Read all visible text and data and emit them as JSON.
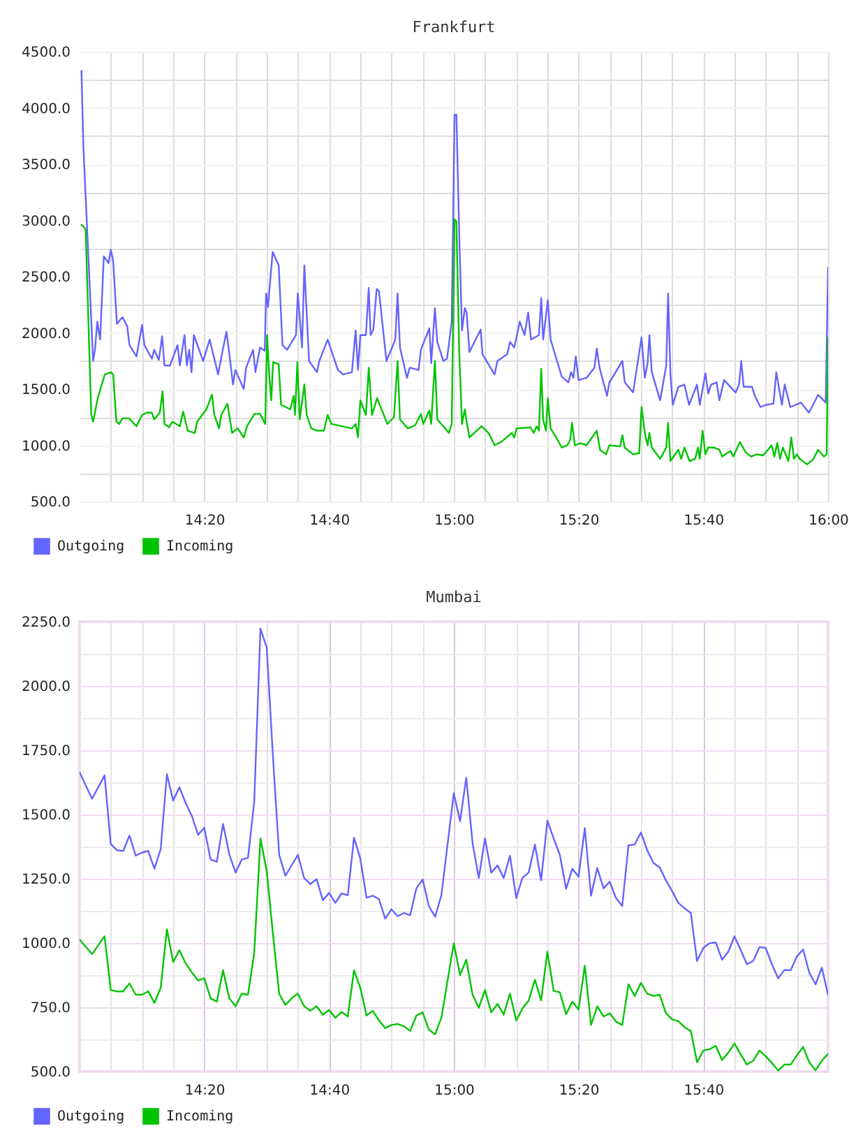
{
  "chart_data": [
    {
      "type": "line",
      "title": "Frankfurt",
      "xlim": [
        14,
        16
      ],
      "ylim": [
        500,
        4500
      ],
      "xticks": [
        {
          "value": 14.0833,
          "label": null
        },
        {
          "value": 14.1667,
          "label": null
        },
        {
          "value": 14.25,
          "label": null
        },
        {
          "value": 14.3333,
          "label": "14:20"
        },
        {
          "value": 14.4167,
          "label": null
        },
        {
          "value": 14.5,
          "label": null
        },
        {
          "value": 14.5833,
          "label": null
        },
        {
          "value": 14.6667,
          "label": "14:40"
        },
        {
          "value": 14.75,
          "label": null
        },
        {
          "value": 14.8333,
          "label": null
        },
        {
          "value": 14.9167,
          "label": null
        },
        {
          "value": 15,
          "label": "15:00"
        },
        {
          "value": 15.0833,
          "label": null
        },
        {
          "value": 15.1667,
          "label": null
        },
        {
          "value": 15.25,
          "label": null
        },
        {
          "value": 15.3333,
          "label": "15:20"
        },
        {
          "value": 15.4167,
          "label": null
        },
        {
          "value": 15.5,
          "label": null
        },
        {
          "value": 15.5833,
          "label": null
        },
        {
          "value": 15.6667,
          "label": "15:40"
        },
        {
          "value": 15.75,
          "label": null
        },
        {
          "value": 15.8333,
          "label": null
        },
        {
          "value": 15.9167,
          "label": null
        },
        {
          "value": 16,
          "label": "16:00"
        }
      ],
      "yticks": [
        {
          "value": 500,
          "label": "500.0"
        },
        {
          "value": 750,
          "label": null
        },
        {
          "value": 1000,
          "label": "1000.0"
        },
        {
          "value": 1250,
          "label": null
        },
        {
          "value": 1500,
          "label": "1500.0"
        },
        {
          "value": 1750,
          "label": null
        },
        {
          "value": 2000,
          "label": "2000.0"
        },
        {
          "value": 2250,
          "label": null
        },
        {
          "value": 2500,
          "label": "2500.0"
        },
        {
          "value": 2750,
          "label": null
        },
        {
          "value": 3000,
          "label": "3000.0"
        },
        {
          "value": 3250,
          "label": null
        },
        {
          "value": 3500,
          "label": "3500.0"
        },
        {
          "value": 3750,
          "label": null
        },
        {
          "value": 4000,
          "label": "4000.0"
        },
        {
          "value": 4250,
          "label": null
        },
        {
          "value": 4500,
          "label": "4500.0"
        }
      ],
      "grid": true,
      "legend": "bottom left",
      "series": [
        {
          "name": "Outgoing",
          "color": "#6464ff",
          "x": [
            14.005,
            14.01,
            14.0361,
            14.0411,
            14.0474,
            14.0548,
            14.0648,
            14.0773,
            14.0835,
            14.0897,
            14.0997,
            14.1146,
            14.1271,
            14.1333,
            14.152,
            14.167,
            14.1732,
            14.1931,
            14.1994,
            14.2118,
            14.2206,
            14.2268,
            14.2417,
            14.2617,
            14.2679,
            14.2804,
            14.2866,
            14.2928,
            14.2991,
            14.3053,
            14.3302,
            14.3477,
            14.3701,
            14.3826,
            14.3925,
            14.3988,
            14.41,
            14.4162,
            14.4386,
            14.4449,
            14.4636,
            14.4698,
            14.4822,
            14.4947,
            14.4984,
            14.5034,
            14.5159,
            14.5321,
            14.5421,
            14.5545,
            14.5782,
            14.5832,
            14.5944,
            14.6006,
            14.6131,
            14.6343,
            14.6405,
            14.6629,
            14.6903,
            14.704,
            14.7277,
            14.7377,
            14.7439,
            14.7502,
            14.7651,
            14.7726,
            14.7776,
            14.785,
            14.7938,
            14.8,
            14.8199,
            14.8436,
            14.8498,
            14.8561,
            14.8748,
            14.8822,
            14.9059,
            14.9121,
            14.9346,
            14.9396,
            14.9495,
            14.9558,
            14.972,
            14.9819,
            14.9944,
            15.0019,
            15.0069,
            15.0143,
            15.0218,
            15.0293,
            15.0343,
            15.0417,
            15.0717,
            15.0766,
            15.109,
            15.1165,
            15.1427,
            15.1502,
            15.1614,
            15.1763,
            15.1888,
            15.1988,
            15.2062,
            15.2274,
            15.2336,
            15.2386,
            15.2511,
            15.2586,
            15.2885,
            15.3059,
            15.3134,
            15.3196,
            15.3259,
            15.3333,
            15.3545,
            15.3757,
            15.3819,
            15.3894,
            15.4093,
            15.4156,
            15.4505,
            15.4567,
            15.4791,
            15.5016,
            15.5103,
            15.5178,
            15.5227,
            15.529,
            15.5514,
            15.5676,
            15.5726,
            15.5788,
            15.585,
            15.6,
            15.6162,
            15.6287,
            15.6498,
            15.6573,
            15.6723,
            15.6798,
            15.6872,
            15.7022,
            15.7097,
            15.7221,
            15.7533,
            15.762,
            15.7682,
            15.7745,
            15.7969,
            15.8044,
            15.8193,
            15.8343,
            15.8542,
            15.8617,
            15.8766,
            15.8841,
            15.8991,
            15.9277,
            15.9489,
            15.9738,
            15.9938,
            16.0
          ],
          "values": [
            4330,
            3670,
            1750,
            1850,
            2100,
            1940,
            2680,
            2620,
            2740,
            2640,
            2080,
            2140,
            2060,
            1890,
            1790,
            2070,
            1890,
            1770,
            1850,
            1760,
            1970,
            1710,
            1710,
            1890,
            1710,
            1980,
            1710,
            1850,
            1650,
            1980,
            1750,
            1940,
            1630,
            1850,
            2010,
            1850,
            1540,
            1670,
            1500,
            1690,
            1850,
            1650,
            1870,
            1840,
            2350,
            2230,
            2720,
            2600,
            1890,
            1850,
            1980,
            2350,
            1870,
            2600,
            1750,
            1650,
            1750,
            1940,
            1670,
            1630,
            1650,
            2020,
            1670,
            1980,
            1980,
            2400,
            1980,
            2030,
            2390,
            2370,
            1750,
            1940,
            2350,
            1870,
            1600,
            1690,
            1670,
            1850,
            2040,
            1730,
            2220,
            1920,
            1750,
            1770,
            2100,
            3940,
            3940,
            2890,
            2020,
            2220,
            2180,
            1830,
            2030,
            1810,
            1630,
            1750,
            1810,
            1920,
            1870,
            2100,
            1980,
            2180,
            1940,
            1980,
            2310,
            1940,
            2290,
            1940,
            1610,
            1560,
            1650,
            1600,
            1790,
            1580,
            1600,
            1690,
            1860,
            1690,
            1440,
            1560,
            1750,
            1560,
            1470,
            1960,
            1600,
            1730,
            1980,
            1650,
            1400,
            1710,
            2350,
            1630,
            1360,
            1520,
            1540,
            1360,
            1540,
            1360,
            1640,
            1460,
            1540,
            1560,
            1400,
            1580,
            1470,
            1540,
            1750,
            1520,
            1520,
            1440,
            1340,
            1360,
            1370,
            1650,
            1360,
            1540,
            1340,
            1380,
            1290,
            1450,
            1380,
            2580
          ]
        },
        {
          "name": "Incoming",
          "color": "#00c400",
          "x": [
            14.005,
            14.0125,
            14.0162,
            14.0312,
            14.0361,
            14.0486,
            14.0611,
            14.0673,
            14.0835,
            14.0897,
            14.0984,
            14.1059,
            14.1146,
            14.1321,
            14.152,
            14.167,
            14.1794,
            14.1931,
            14.1994,
            14.2143,
            14.2218,
            14.2268,
            14.2393,
            14.248,
            14.2679,
            14.2766,
            14.2891,
            14.3078,
            14.314,
            14.3389,
            14.3539,
            14.3601,
            14.3726,
            14.3788,
            14.395,
            14.4075,
            14.4224,
            14.4386,
            14.4474,
            14.4673,
            14.4822,
            14.496,
            14.5009,
            14.5072,
            14.5121,
            14.5171,
            14.5321,
            14.5383,
            14.5632,
            14.572,
            14.5757,
            14.5819,
            14.5882,
            14.6006,
            14.6069,
            14.6193,
            14.6355,
            14.653,
            14.6629,
            14.6729,
            14.7277,
            14.7377,
            14.7439,
            14.7502,
            14.7651,
            14.7726,
            14.7813,
            14.795,
            14.8224,
            14.8399,
            14.8498,
            14.8561,
            14.8773,
            14.8972,
            14.9121,
            14.9184,
            14.9346,
            14.9396,
            14.9495,
            14.9558,
            14.972,
            14.9869,
            14.9944,
            15.0019,
            15.0069,
            15.0143,
            15.0218,
            15.0293,
            15.0343,
            15.0417,
            15.0741,
            15.0928,
            15.109,
            15.1265,
            15.1551,
            15.1614,
            15.1676,
            15.205,
            15.2137,
            15.2212,
            15.2274,
            15.2336,
            15.2386,
            15.2461,
            15.2511,
            15.2586,
            15.2735,
            15.2885,
            15.3034,
            15.3109,
            15.3159,
            15.3234,
            15.3383,
            15.3545,
            15.3819,
            15.3907,
            15.4069,
            15.4156,
            15.4442,
            15.4505,
            15.4567,
            15.4791,
            15.4953,
            15.5016,
            15.5103,
            15.5178,
            15.5227,
            15.529,
            15.5514,
            15.5676,
            15.5726,
            15.5788,
            15.6,
            15.6075,
            15.6162,
            15.6299,
            15.6449,
            15.6523,
            15.6573,
            15.6648,
            15.6723,
            15.6798,
            15.6947,
            15.7097,
            15.7171,
            15.7396,
            15.747,
            15.7645,
            15.7794,
            15.7944,
            15.8093,
            15.8268,
            15.8492,
            15.8567,
            15.8642,
            15.8717,
            15.8791,
            15.8941,
            15.9016,
            15.909,
            15.9165,
            15.924,
            15.9439,
            15.9589,
            15.9738,
            15.9888,
            15.9963,
            16.0
          ],
          "values": [
            2960,
            2940,
            2910,
            1270,
            1210,
            1420,
            1560,
            1630,
            1650,
            1630,
            1210,
            1190,
            1240,
            1240,
            1170,
            1270,
            1290,
            1290,
            1230,
            1290,
            1480,
            1190,
            1160,
            1210,
            1170,
            1300,
            1130,
            1110,
            1210,
            1320,
            1450,
            1270,
            1150,
            1270,
            1370,
            1110,
            1150,
            1070,
            1170,
            1280,
            1280,
            1190,
            1980,
            1600,
            1400,
            1740,
            1720,
            1360,
            1320,
            1440,
            1270,
            1740,
            1230,
            1540,
            1270,
            1150,
            1130,
            1130,
            1270,
            1190,
            1150,
            1190,
            1070,
            1400,
            1270,
            1690,
            1270,
            1420,
            1190,
            1250,
            1750,
            1230,
            1150,
            1180,
            1280,
            1190,
            1310,
            1190,
            1750,
            1230,
            1170,
            1110,
            1190,
            3010,
            2990,
            1850,
            1190,
            1320,
            1210,
            1070,
            1170,
            1110,
            1000,
            1030,
            1110,
            1070,
            1150,
            1160,
            1110,
            1170,
            1130,
            1680,
            1230,
            1130,
            1420,
            1150,
            1070,
            980,
            1000,
            1050,
            1200,
            1000,
            1020,
            1000,
            1130,
            960,
            920,
            1000,
            990,
            1090,
            980,
            920,
            930,
            1340,
            1110,
            1000,
            1110,
            980,
            880,
            980,
            1200,
            860,
            960,
            880,
            980,
            860,
            880,
            980,
            880,
            1130,
            920,
            980,
            980,
            960,
            900,
            950,
            900,
            1030,
            940,
            900,
            920,
            910,
            1000,
            900,
            1020,
            880,
            980,
            860,
            1070,
            880,
            920,
            880,
            830,
            870,
            960,
            900,
            920,
            1960
          ]
        }
      ]
    },
    {
      "type": "line",
      "title": "Mumbai",
      "xlim": [
        14,
        16
      ],
      "ylim": [
        500,
        2250
      ],
      "xticks": [
        {
          "value": 14.0833,
          "label": null
        },
        {
          "value": 14.1667,
          "label": null
        },
        {
          "value": 14.25,
          "label": null
        },
        {
          "value": 14.3333,
          "label": "14:20"
        },
        {
          "value": 14.4167,
          "label": null
        },
        {
          "value": 14.5,
          "label": null
        },
        {
          "value": 14.5833,
          "label": null
        },
        {
          "value": 14.6667,
          "label": "14:40"
        },
        {
          "value": 14.75,
          "label": null
        },
        {
          "value": 14.8333,
          "label": null
        },
        {
          "value": 14.9167,
          "label": null
        },
        {
          "value": 15,
          "label": "15:00"
        },
        {
          "value": 15.0833,
          "label": null
        },
        {
          "value": 15.1667,
          "label": null
        },
        {
          "value": 15.25,
          "label": null
        },
        {
          "value": 15.3333,
          "label": "15:20"
        },
        {
          "value": 15.4167,
          "label": null
        },
        {
          "value": 15.5,
          "label": null
        },
        {
          "value": 15.5833,
          "label": null
        },
        {
          "value": 15.6667,
          "label": "15:40"
        },
        {
          "value": 15.75,
          "label": null
        },
        {
          "value": 15.8333,
          "label": null
        },
        {
          "value": 15.9167,
          "label": null
        }
      ],
      "yticks": [
        {
          "value": 500,
          "label": "500.0"
        },
        {
          "value": 625,
          "label": null
        },
        {
          "value": 750,
          "label": "750.0"
        },
        {
          "value": 875,
          "label": null
        },
        {
          "value": 1000,
          "label": "1000.0"
        },
        {
          "value": 1125,
          "label": null
        },
        {
          "value": 1250,
          "label": "1250.0"
        },
        {
          "value": 1375,
          "label": null
        },
        {
          "value": 1500,
          "label": "1500.0"
        },
        {
          "value": 1625,
          "label": null
        },
        {
          "value": 1750,
          "label": "1750.0"
        },
        {
          "value": 1875,
          "label": null
        },
        {
          "value": 2000,
          "label": "2000.0"
        },
        {
          "value": 2125,
          "label": null
        },
        {
          "value": 2250,
          "label": "2250.0"
        }
      ],
      "grid": true,
      "legend": "bottom left",
      "x": [
        14.0,
        14.0333,
        14.0667,
        14.0833,
        14.1,
        14.1167,
        14.1333,
        14.15,
        14.1667,
        14.1833,
        14.2,
        14.2167,
        14.2333,
        14.25,
        14.2667,
        14.2833,
        14.3,
        14.3167,
        14.3333,
        14.35,
        14.3667,
        14.3833,
        14.4,
        14.4167,
        14.4333,
        14.45,
        14.4667,
        14.4833,
        14.5,
        14.5167,
        14.5333,
        14.55,
        14.5667,
        14.5833,
        14.6,
        14.6167,
        14.6333,
        14.65,
        14.6667,
        14.6833,
        14.7,
        14.7167,
        14.7333,
        14.75,
        14.7667,
        14.7833,
        14.8,
        14.8167,
        14.8333,
        14.85,
        14.8667,
        14.8833,
        14.9,
        14.9167,
        14.9333,
        14.95,
        14.9667,
        15.0,
        15.0167,
        15.0333,
        15.05,
        15.0667,
        15.0833,
        15.1,
        15.1167,
        15.1333,
        15.15,
        15.1667,
        15.1833,
        15.2,
        15.2167,
        15.2333,
        15.25,
        15.2667,
        15.2833,
        15.3,
        15.3167,
        15.3333,
        15.35,
        15.3667,
        15.3833,
        15.4,
        15.4167,
        15.4333,
        15.45,
        15.4667,
        15.4833,
        15.5,
        15.5167,
        15.5333,
        15.55,
        15.5667,
        15.5833,
        15.6,
        15.6167,
        15.6333,
        15.65,
        15.6667,
        15.6833,
        15.7,
        15.7167,
        15.7333,
        15.75,
        15.7667,
        15.7833,
        15.8,
        15.8167,
        15.8333,
        15.85,
        15.8667,
        15.8833,
        15.9,
        15.9167,
        15.9333,
        15.95,
        15.9667,
        15.9833,
        16.0
      ],
      "series": [
        {
          "name": "Outgoing",
          "color": "#6464ff",
          "values": [
            1664,
            1561,
            1652,
            1385,
            1361,
            1358,
            1418,
            1340,
            1352,
            1358,
            1289,
            1365,
            1657,
            1554,
            1606,
            1545,
            1494,
            1421,
            1448,
            1325,
            1316,
            1463,
            1345,
            1274,
            1325,
            1331,
            1550,
            2223,
            2150,
            1724,
            1343,
            1262,
            1303,
            1343,
            1253,
            1229,
            1249,
            1166,
            1195,
            1156,
            1193,
            1186,
            1410,
            1329,
            1176,
            1184,
            1171,
            1095,
            1131,
            1104,
            1117,
            1108,
            1213,
            1247,
            1144,
            1102,
            1186,
            1583,
            1474,
            1643,
            1389,
            1253,
            1407,
            1274,
            1302,
            1253,
            1340,
            1175,
            1253,
            1274,
            1383,
            1244,
            1476,
            1407,
            1343,
            1211,
            1289,
            1258,
            1447,
            1184,
            1292,
            1213,
            1238,
            1175,
            1144,
            1380,
            1383,
            1430,
            1361,
            1312,
            1294,
            1244,
            1202,
            1156,
            1135,
            1117,
            930,
            981,
            999,
            1002,
            935,
            966,
            1026,
            972,
            917,
            930,
            984,
            981,
            917,
            863,
            895,
            894,
            948,
            975,
            884,
            839,
            904,
            799
          ]
        },
        {
          "name": "Incoming",
          "color": "#00c400",
          "values": [
            1013,
            957,
            1026,
            817,
            812,
            812,
            843,
            799,
            799,
            812,
            767,
            826,
            1053,
            926,
            972,
            921,
            886,
            854,
            863,
            785,
            772,
            894,
            785,
            754,
            803,
            799,
            962,
            1407,
            1280,
            1035,
            803,
            759,
            785,
            803,
            754,
            736,
            754,
            721,
            739,
            709,
            732,
            714,
            894,
            826,
            718,
            736,
            699,
            669,
            681,
            685,
            676,
            658,
            718,
            730,
            663,
            645,
            709,
            999,
            875,
            935,
            799,
            748,
            817,
            730,
            763,
            721,
            803,
            699,
            745,
            776,
            857,
            777,
            966,
            814,
            808,
            723,
            772,
            741,
            912,
            681,
            754,
            714,
            727,
            694,
            681,
            839,
            794,
            845,
            803,
            794,
            799,
            727,
            703,
            696,
            672,
            658,
            536,
            582,
            587,
            600,
            545,
            573,
            609,
            567,
            527,
            542,
            582,
            560,
            533,
            504,
            527,
            527,
            563,
            596,
            536,
            505,
            542,
            569
          ]
        }
      ]
    }
  ]
}
